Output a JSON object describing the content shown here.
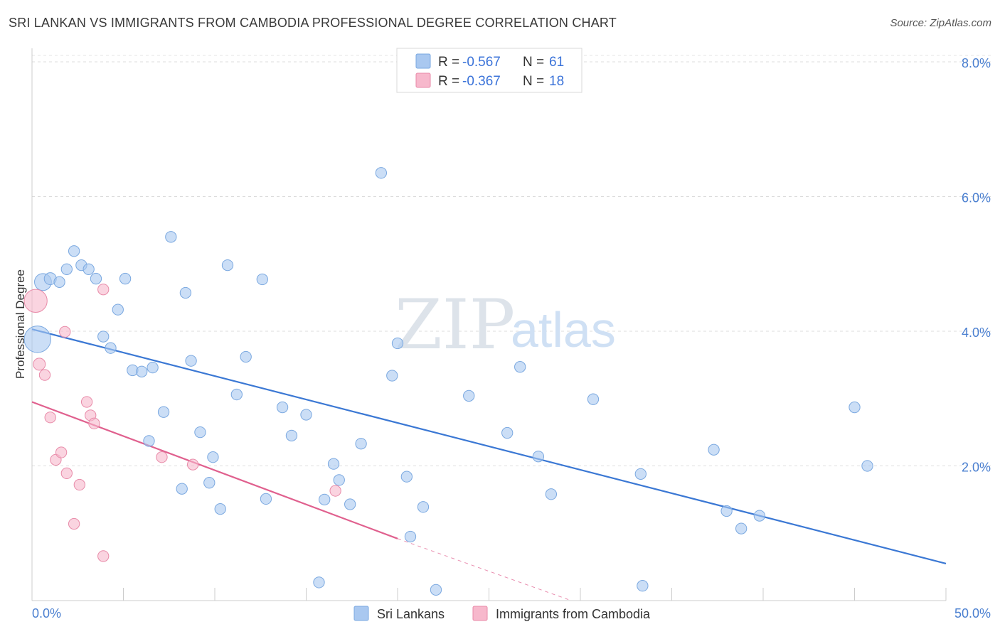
{
  "header": {
    "title": "SRI LANKAN VS IMMIGRANTS FROM CAMBODIA PROFESSIONAL DEGREE CORRELATION CHART",
    "source": "Source: ZipAtlas.com"
  },
  "watermark": {
    "zip": "ZIP",
    "atlas": "atlas"
  },
  "legend": {
    "rows": [
      {
        "r_label": "R =",
        "r_value": "-0.567",
        "n_label": "N =",
        "n_value": "61",
        "color": "#a9c8f0"
      },
      {
        "r_label": "R =",
        "r_value": "-0.367",
        "n_label": "N =",
        "n_value": "18",
        "color": "#f7b8cc"
      }
    ]
  },
  "bottom_legend": [
    {
      "label": "Sri Lankans",
      "color": "#a9c8f0"
    },
    {
      "label": "Immigrants from Cambodia",
      "color": "#f7b8cc"
    }
  ],
  "chart_data": {
    "type": "scatter",
    "title": "SRI LANKAN VS IMMIGRANTS FROM CAMBODIA PROFESSIONAL DEGREE CORRELATION CHART",
    "xlabel": "",
    "ylabel": "Professional Degree",
    "xlim": [
      0,
      50
    ],
    "ylim": [
      0,
      8.2
    ],
    "x_tick_labels": [
      "0.0%",
      "50.0%"
    ],
    "y_ticks": [
      2,
      4,
      6,
      8
    ],
    "y_tick_labels": [
      "2.0%",
      "4.0%",
      "6.0%",
      "8.0%"
    ],
    "grid": "horizontal dashed",
    "series": [
      {
        "name": "Sri Lankans",
        "color": "#a9c8f0",
        "stroke": "#7aa8e0",
        "trend_color": "#3b78d4",
        "trend": {
          "x0": 0,
          "y0": 4.03,
          "x1": 50,
          "y1": 0.55
        },
        "points": [
          [
            0.3,
            3.88,
            2.2
          ],
          [
            0.6,
            4.73,
            1.4
          ],
          [
            1.0,
            4.78,
            1.0
          ],
          [
            1.5,
            4.73,
            0.9
          ],
          [
            1.9,
            4.92,
            0.9
          ],
          [
            2.3,
            5.19,
            0.9
          ],
          [
            2.7,
            4.98,
            0.9
          ],
          [
            3.1,
            4.92,
            0.9
          ],
          [
            3.5,
            4.78,
            0.9
          ],
          [
            3.9,
            3.92,
            0.9
          ],
          [
            4.3,
            3.75,
            0.9
          ],
          [
            4.7,
            4.32,
            0.9
          ],
          [
            5.1,
            4.78,
            0.9
          ],
          [
            5.5,
            3.42,
            0.9
          ],
          [
            6.0,
            3.4,
            0.9
          ],
          [
            6.4,
            2.37,
            0.9
          ],
          [
            6.6,
            3.46,
            0.9
          ],
          [
            7.2,
            2.8,
            0.9
          ],
          [
            7.6,
            5.4,
            0.9
          ],
          [
            8.2,
            1.66,
            0.9
          ],
          [
            8.4,
            4.57,
            0.9
          ],
          [
            8.7,
            3.56,
            0.9
          ],
          [
            9.2,
            2.5,
            0.9
          ],
          [
            9.7,
            1.75,
            0.9
          ],
          [
            9.9,
            2.13,
            0.9
          ],
          [
            10.3,
            1.36,
            0.9
          ],
          [
            10.7,
            4.98,
            0.9
          ],
          [
            11.2,
            3.06,
            0.9
          ],
          [
            11.7,
            3.62,
            0.9
          ],
          [
            12.6,
            4.77,
            0.9
          ],
          [
            12.8,
            1.51,
            0.9
          ],
          [
            13.7,
            2.87,
            0.9
          ],
          [
            14.2,
            2.45,
            0.9
          ],
          [
            15.0,
            2.76,
            0.9
          ],
          [
            15.7,
            0.27,
            0.9
          ],
          [
            16.0,
            1.5,
            0.9
          ],
          [
            16.5,
            2.03,
            0.9
          ],
          [
            16.8,
            1.79,
            0.9
          ],
          [
            17.4,
            1.43,
            0.9
          ],
          [
            18.0,
            2.33,
            0.9
          ],
          [
            19.1,
            6.35,
            0.9
          ],
          [
            19.7,
            3.34,
            0.9
          ],
          [
            20.0,
            3.82,
            0.9
          ],
          [
            20.5,
            1.84,
            0.9
          ],
          [
            20.7,
            0.95,
            0.9
          ],
          [
            21.4,
            1.39,
            0.9
          ],
          [
            22.1,
            0.16,
            0.9
          ],
          [
            23.9,
            3.04,
            0.9
          ],
          [
            26.0,
            2.49,
            0.9
          ],
          [
            26.7,
            3.47,
            0.9
          ],
          [
            27.7,
            2.14,
            0.9
          ],
          [
            28.4,
            1.58,
            0.9
          ],
          [
            30.7,
            2.99,
            0.9
          ],
          [
            33.3,
            1.88,
            0.9
          ],
          [
            33.4,
            0.22,
            0.9
          ],
          [
            37.3,
            2.24,
            0.9
          ],
          [
            38.0,
            1.33,
            0.9
          ],
          [
            38.8,
            1.07,
            0.9
          ],
          [
            39.8,
            1.26,
            0.9
          ],
          [
            45.0,
            2.87,
            0.9
          ],
          [
            45.7,
            2.0,
            0.9
          ]
        ]
      },
      {
        "name": "Immigrants from Cambodia",
        "color": "#f7b8cc",
        "stroke": "#e88aa8",
        "trend_color": "#e0608e",
        "trend": {
          "x0": 0,
          "y0": 2.95,
          "x1": 20.0,
          "y1": 0.92,
          "x_dash_end": 29.5,
          "y_dash_end": 0.0
        },
        "points": [
          [
            0.2,
            4.45,
            1.9
          ],
          [
            0.4,
            3.51,
            1.0
          ],
          [
            0.7,
            3.35,
            0.9
          ],
          [
            1.0,
            2.72,
            0.9
          ],
          [
            1.3,
            2.09,
            0.9
          ],
          [
            1.6,
            2.2,
            0.9
          ],
          [
            1.9,
            1.89,
            0.9
          ],
          [
            2.3,
            1.14,
            0.9
          ],
          [
            2.6,
            1.72,
            0.9
          ],
          [
            1.8,
            3.99,
            0.9
          ],
          [
            3.0,
            2.95,
            0.9
          ],
          [
            3.2,
            2.75,
            0.9
          ],
          [
            3.4,
            2.63,
            0.9
          ],
          [
            3.9,
            0.66,
            0.9
          ],
          [
            3.9,
            4.62,
            0.9
          ],
          [
            7.1,
            2.13,
            0.9
          ],
          [
            8.8,
            2.02,
            0.9
          ],
          [
            16.6,
            1.63,
            0.9
          ]
        ]
      }
    ]
  }
}
